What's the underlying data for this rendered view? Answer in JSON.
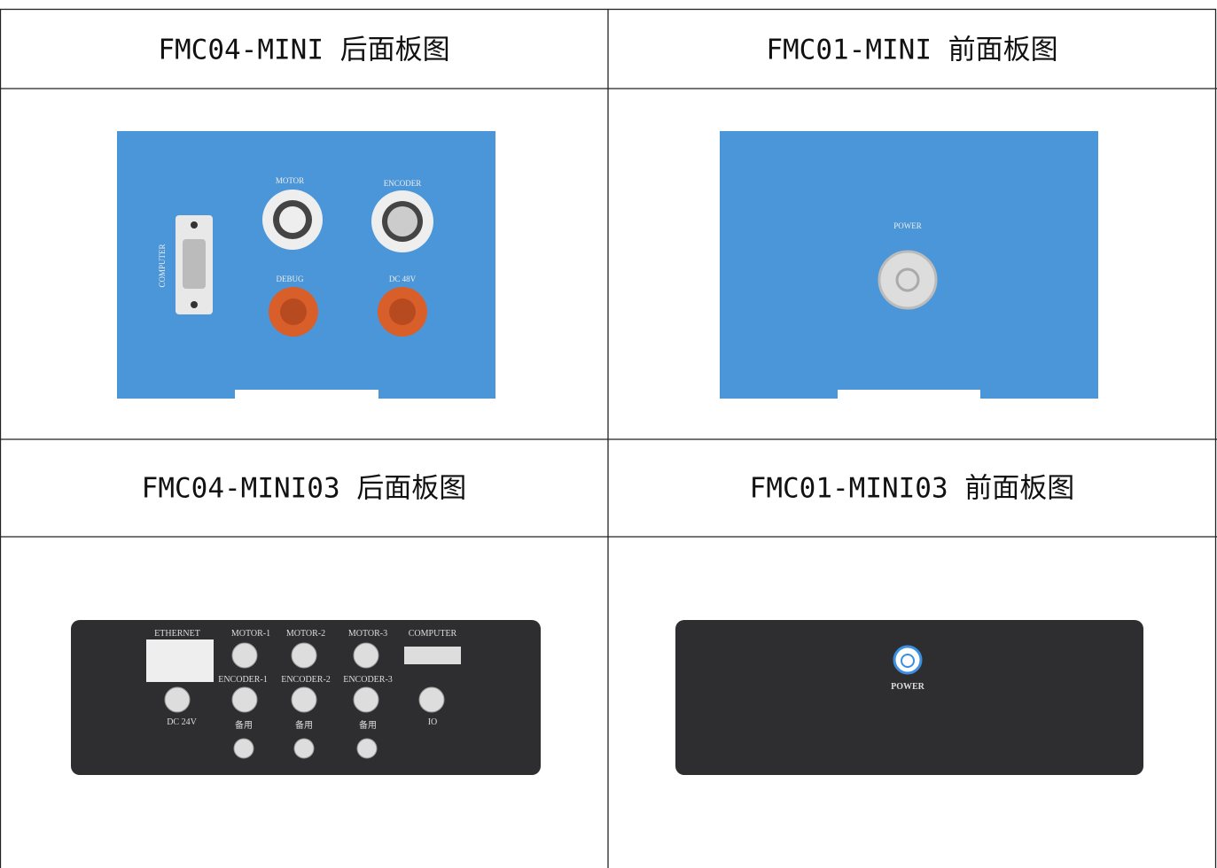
{
  "table": {
    "headers": [
      "FMC04-MINI 后面板图",
      "FMC01-MINI 前面板图",
      "FMC04-MINI03 后面板图",
      "FMC01-MINI03 前面板图"
    ],
    "panels": [
      {
        "labels": [
          "MOTOR",
          "ENCODER",
          "COMPUTER",
          "DEBUG",
          "DC 48V"
        ]
      },
      {
        "labels": [
          "POWER"
        ]
      },
      {
        "labels": [
          "ETHERNET",
          "MOTOR-1",
          "MOTOR-2",
          "MOTOR-3",
          "COMPUTER",
          "ENCODER-1",
          "ENCODER-2",
          "ENCODER-3",
          "DC 24V",
          "IO",
          "备用",
          "备用",
          "备用"
        ]
      },
      {
        "labels": [
          "POWER"
        ]
      }
    ]
  }
}
